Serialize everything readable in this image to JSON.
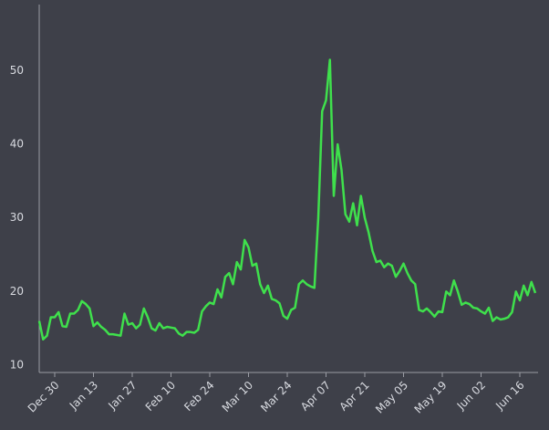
{
  "chart_data": {
    "type": "line",
    "categories": [
      "Dec 24",
      "Dec 25",
      "Dec 26",
      "Dec 27",
      "Dec 30",
      "Dec 31",
      "Jan 01",
      "Jan 02",
      "Jan 03",
      "Jan 06",
      "Jan 07",
      "Jan 08",
      "Jan 09",
      "Jan 10",
      "Jan 13",
      "Jan 14",
      "Jan 15",
      "Jan 16",
      "Jan 17",
      "Jan 20",
      "Jan 21",
      "Jan 22",
      "Jan 23",
      "Jan 24",
      "Jan 27",
      "Jan 28",
      "Jan 29",
      "Jan 30",
      "Jan 31",
      "Feb 03",
      "Feb 04",
      "Feb 05",
      "Feb 06",
      "Feb 07",
      "Feb 10",
      "Feb 11",
      "Feb 12",
      "Feb 13",
      "Feb 14",
      "Feb 17",
      "Feb 18",
      "Feb 19",
      "Feb 20",
      "Feb 21",
      "Feb 24",
      "Feb 25",
      "Feb 26",
      "Feb 27",
      "Feb 28",
      "Mar 03",
      "Mar 04",
      "Mar 05",
      "Mar 06",
      "Mar 07",
      "Mar 10",
      "Mar 11",
      "Mar 12",
      "Mar 13",
      "Mar 14",
      "Mar 17",
      "Mar 18",
      "Mar 19",
      "Mar 20",
      "Mar 21",
      "Mar 24",
      "Mar 25",
      "Mar 26",
      "Mar 27",
      "Mar 28",
      "Mar 31",
      "Apr 01",
      "Apr 02",
      "Apr 03",
      "Apr 04",
      "Apr 07",
      "Apr 08",
      "Apr 09",
      "Apr 10",
      "Apr 11",
      "Apr 14",
      "Apr 15",
      "Apr 16",
      "Apr 17",
      "Apr 18",
      "Apr 21",
      "Apr 22",
      "Apr 23",
      "Apr 24",
      "Apr 25",
      "Apr 28",
      "Apr 29",
      "Apr 30",
      "May 01",
      "May 02",
      "May 05",
      "May 06",
      "May 07",
      "May 08",
      "May 09",
      "May 12",
      "May 13",
      "May 14",
      "May 15",
      "May 16",
      "May 19",
      "May 20",
      "May 21",
      "May 22",
      "May 23",
      "May 26",
      "May 27",
      "May 28",
      "May 29",
      "May 30",
      "Jun 02",
      "Jun 03",
      "Jun 04",
      "Jun 05",
      "Jun 06",
      "Jun 09",
      "Jun 10",
      "Jun 11",
      "Jun 12",
      "Jun 13",
      "Jun 16",
      "Jun 17",
      "Jun 18",
      "Jun 19",
      "Jun 20"
    ],
    "series": [
      {
        "color": "#3fe04c",
        "values": [
          16,
          13.5,
          14,
          16.5,
          16.5,
          17.2,
          15.3,
          15.2,
          17,
          17,
          17.5,
          18.7,
          18.3,
          17.7,
          15.3,
          15.8,
          15.2,
          14.8,
          14.2,
          14.2,
          14.1,
          14,
          17,
          15.5,
          15.7,
          15,
          15.5,
          17.7,
          16.5,
          15,
          14.7,
          15.7,
          15,
          15.2,
          15.1,
          15,
          14.3,
          14,
          14.5,
          14.5,
          14.4,
          14.8,
          17.3,
          18,
          18.5,
          18.3,
          20.3,
          19.2,
          22,
          22.5,
          21,
          24,
          23,
          27,
          26,
          23.5,
          23.8,
          21,
          19.8,
          20.8,
          19,
          18.8,
          18.4,
          16.7,
          16.3,
          17.5,
          17.8,
          21,
          21.5,
          21,
          20.7,
          20.5,
          30,
          44.5,
          46,
          51.5,
          33,
          40,
          36.5,
          30.5,
          29.5,
          32,
          29,
          33,
          30,
          28,
          25.5,
          24,
          24.2,
          23.3,
          23.8,
          23.5,
          22,
          22.8,
          23.8,
          22.5,
          21.5,
          21,
          17.5,
          17.3,
          17.7,
          17.2,
          16.6,
          17.3,
          17.2,
          20,
          19.5,
          21.5,
          20,
          18.2,
          18.5,
          18.3,
          17.8,
          17.7,
          17.3,
          17,
          17.8,
          16,
          16.5,
          16.2,
          16.3,
          16.5,
          17.2,
          20,
          18.8,
          20.8,
          19.5,
          21.3,
          19.8
        ]
      }
    ],
    "xticks": [
      "Dec 30",
      "Jan 13",
      "Jan 27",
      "Feb 10",
      "Feb 24",
      "Mar 10",
      "Mar 24",
      "Apr 07",
      "Apr 21",
      "May 05",
      "May 19",
      "Jun 02",
      "Jun 16"
    ],
    "ylim": [
      9,
      59
    ],
    "yticks": [
      10,
      20,
      30,
      40,
      50
    ],
    "grid": false
  }
}
